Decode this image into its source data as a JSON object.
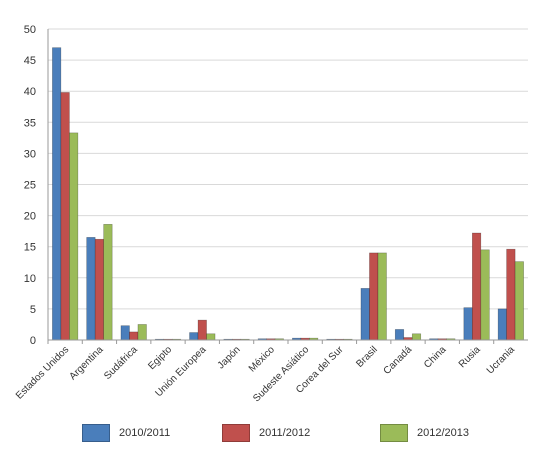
{
  "chart_data": {
    "type": "bar",
    "categories": [
      "Estados Unidos",
      "Argentina",
      "Sudáfrica",
      "Egipto",
      "Unión Europea",
      "Japón",
      "México",
      "Sudeste Asiático",
      "Corea del Sur",
      "Brasil",
      "Canadá",
      "China",
      "Rusia",
      "Ucrania"
    ],
    "series": [
      {
        "name": "2010/2011",
        "color": "#4a7ebb",
        "values": [
          47,
          16.5,
          2.3,
          0.1,
          1.2,
          0.1,
          0.2,
          0.3,
          0.1,
          8.3,
          1.7,
          0.2,
          5.2,
          5
        ]
      },
      {
        "name": "2011/2012",
        "color": "#c0504d",
        "values": [
          39.8,
          16.2,
          1.3,
          0.1,
          3.2,
          0.1,
          0.2,
          0.3,
          0.1,
          14,
          0.4,
          0.2,
          17.2,
          14.6
        ]
      },
      {
        "name": "2012/2013",
        "color": "#9bbb59",
        "values": [
          33.3,
          18.6,
          2.5,
          0.1,
          1,
          0.1,
          0.2,
          0.3,
          0.1,
          14,
          1,
          0.2,
          14.5,
          12.6
        ]
      }
    ],
    "ylim": [
      0,
      50
    ],
    "yticks": [
      "0",
      "5",
      "10",
      "15",
      "20",
      "25",
      "30",
      "35",
      "40",
      "45",
      "50"
    ],
    "grid": true,
    "legend_position": "bottom"
  }
}
